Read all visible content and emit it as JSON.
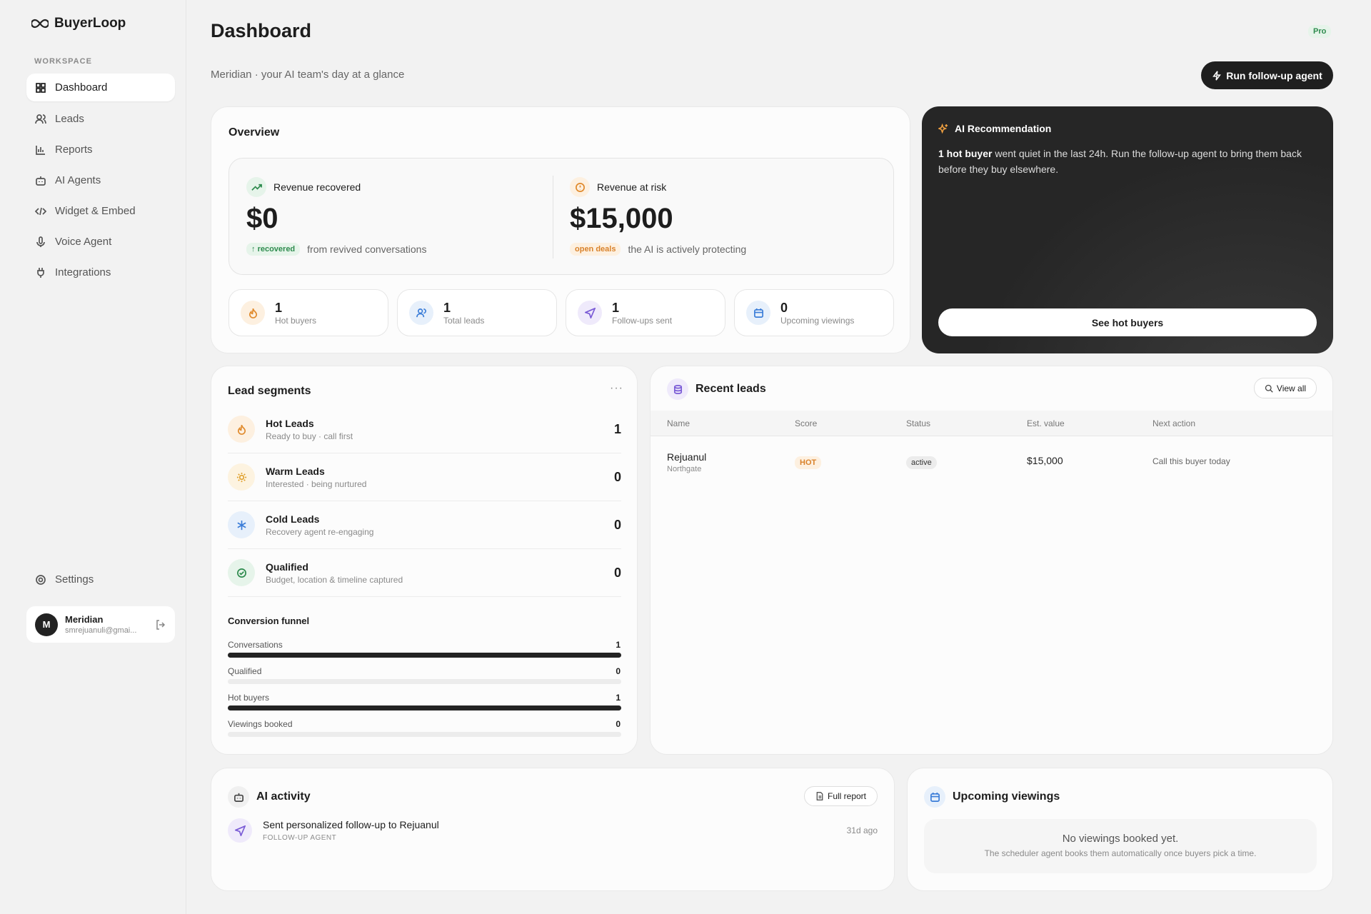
{
  "sidebar": {
    "brand": "BuyerLoop",
    "section": "WORKSPACE",
    "nav": [
      "Dashboard",
      "Leads",
      "Reports",
      "AI Agents",
      "Widget & Embed",
      "Voice Agent",
      "Integrations"
    ],
    "settings": "Settings",
    "user": {
      "initial": "M",
      "name": "Meridian",
      "email": "smrejuanuli@gmai..."
    }
  },
  "header": {
    "title": "Dashboard",
    "badge": "Pro",
    "subtitle": "Meridian · your AI team's day at a glance",
    "button": "Run follow-up agent"
  },
  "overview": {
    "title": "Overview",
    "revenue": [
      {
        "label": "Revenue recovered",
        "value": "$0",
        "tag": "recovered",
        "note": "from revived conversations"
      },
      {
        "label": "Revenue at risk",
        "value": "$15,000",
        "tag": "open deals",
        "note": "the AI is actively protecting"
      }
    ],
    "stats": [
      {
        "value": 1,
        "label": "Hot buyers"
      },
      {
        "value": 1,
        "label": "Total leads"
      },
      {
        "value": 1,
        "label": "Follow-ups sent"
      },
      {
        "value": 0,
        "label": "Upcoming viewings"
      }
    ]
  },
  "recommendation": {
    "title": "AI Recommendation",
    "highlight": "1 hot buyer",
    "text": "went quiet in the last 24h. Run the follow-up agent to bring them back before they buy elsewhere.",
    "button": "See hot buyers"
  },
  "segments": {
    "title": "Lead segments",
    "items": [
      {
        "name": "Hot Leads",
        "desc": "Ready to buy · call first",
        "count": 1
      },
      {
        "name": "Warm Leads",
        "desc": "Interested · being nurtured",
        "count": 0
      },
      {
        "name": "Cold Leads",
        "desc": "Recovery agent re-engaging",
        "count": 0
      },
      {
        "name": "Qualified",
        "desc": "Budget, location & timeline captured",
        "count": 0
      }
    ],
    "funnel": {
      "title": "Conversion funnel",
      "rows": [
        {
          "label": "Conversations",
          "value": 1
        },
        {
          "label": "Qualified",
          "value": 0
        },
        {
          "label": "Hot buyers",
          "value": 1
        },
        {
          "label": "Viewings booked",
          "value": 0
        }
      ]
    }
  },
  "recent_leads": {
    "title": "Recent leads",
    "action": "View all",
    "columns": [
      "Name",
      "Score",
      "Status",
      "Est. value",
      "Next action"
    ],
    "rows": [
      {
        "name": "Rejuanul",
        "location": "Northgate",
        "score": "HOT",
        "status": "active",
        "value": "$15,000",
        "next": "Call this buyer today"
      }
    ]
  },
  "activity": {
    "title": "AI activity",
    "action": "Full report",
    "items": [
      {
        "text": "Sent personalized follow-up to Rejuanul",
        "agent": "FOLLOW-UP AGENT",
        "time": "31d ago"
      }
    ]
  },
  "viewings": {
    "title": "Upcoming viewings",
    "empty": "No viewings booked yet.",
    "hint": "The scheduler agent books them automatically once buyers pick a time."
  }
}
